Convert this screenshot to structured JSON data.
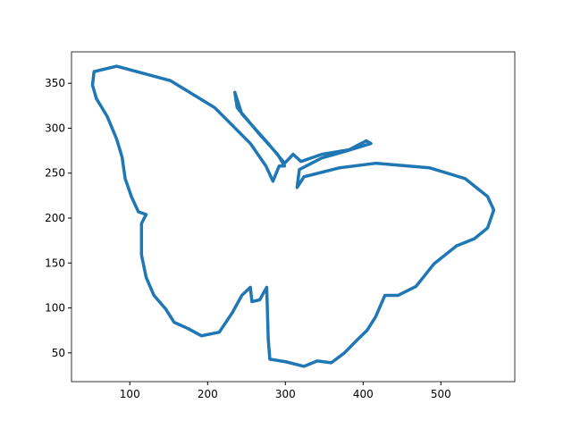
{
  "chart_data": {
    "type": "line",
    "series": [
      {
        "color": "#1f77b4",
        "x": [
          255,
          209,
          152,
          83,
          54,
          52,
          57,
          71,
          83,
          90,
          94,
          102,
          111,
          121,
          115,
          115,
          121,
          131,
          146,
          157,
          175,
          192,
          215,
          232,
          244,
          255,
          257,
          267,
          276,
          278,
          280,
          301,
          324,
          341,
          359,
          376,
          393,
          405,
          416,
          428,
          445,
          468,
          491,
          520,
          543,
          560,
          568,
          560,
          531,
          485,
          416,
          370,
          324,
          315,
          318,
          347,
          376,
          410,
          404,
          382,
          347,
          320,
          310,
          299,
          278,
          244,
          235,
          238,
          267,
          290,
          299,
          292,
          284,
          275,
          255
        ],
        "values": [
          283,
          323,
          353,
          369,
          363,
          348,
          333,
          313,
          288,
          268,
          244,
          224,
          207,
          204,
          194,
          159,
          134,
          114,
          99,
          84,
          77,
          69,
          73,
          95,
          114,
          123,
          107,
          109,
          123,
          65,
          43,
          40,
          35,
          41,
          39,
          50,
          65,
          75,
          90,
          114,
          114,
          124,
          149,
          169,
          177,
          189,
          209,
          224,
          244,
          256,
          261,
          256,
          246,
          234,
          254,
          267,
          274,
          283,
          286,
          276,
          271,
          263,
          271,
          261,
          283,
          316,
          340,
          323,
          293,
          271,
          258,
          258,
          241,
          258,
          283
        ]
      }
    ],
    "xlim": [
      25,
      595
    ],
    "ylim": [
      18,
      385
    ],
    "xticks": [
      100,
      200,
      300,
      400,
      500
    ],
    "yticks": [
      50,
      100,
      150,
      200,
      250,
      300,
      350
    ]
  }
}
